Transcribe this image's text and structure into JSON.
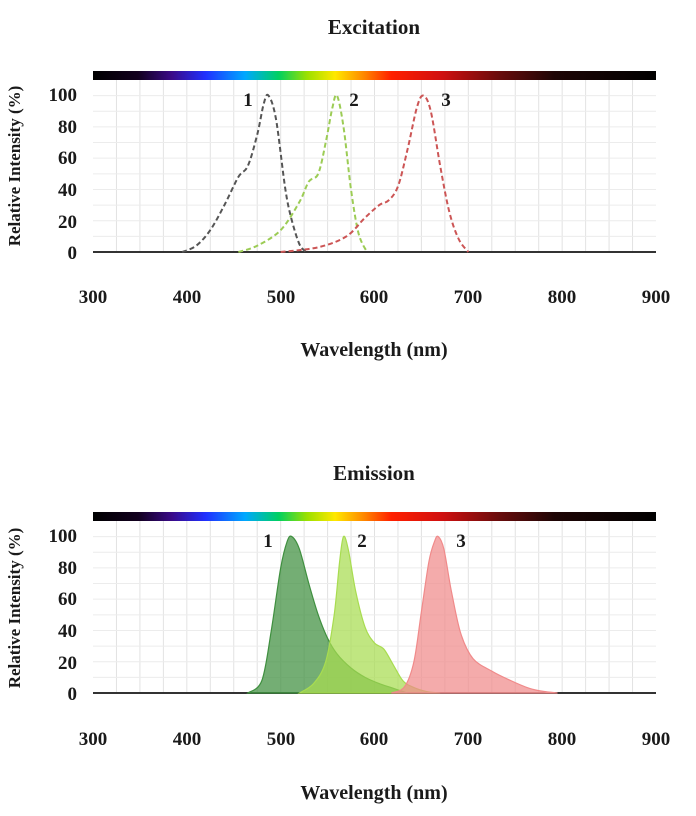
{
  "chart_data": [
    {
      "type": "line",
      "title": "Excitation",
      "xlabel": "Wavelength (nm)",
      "ylabel": "Relative Intensity (%)",
      "xlim": [
        300,
        900
      ],
      "ylim": [
        0,
        110
      ],
      "x_ticks": [
        300,
        400,
        500,
        600,
        700,
        800,
        900
      ],
      "y_ticks": [
        0,
        20,
        40,
        60,
        80,
        100
      ],
      "grid": true,
      "spectrum_bar": true,
      "line_style": "dashed",
      "series": [
        {
          "label": "1",
          "color": "#555555",
          "x": [
            395,
            410,
            425,
            440,
            455,
            465,
            475,
            482,
            487,
            495,
            505,
            512,
            520,
            527
          ],
          "y": [
            0,
            4,
            14,
            30,
            48,
            55,
            75,
            95,
            100,
            85,
            40,
            20,
            5,
            0
          ]
        },
        {
          "label": "2",
          "color": "#9ccc55",
          "x": [
            455,
            475,
            500,
            520,
            530,
            540,
            548,
            555,
            560,
            567,
            575,
            583,
            592
          ],
          "y": [
            0,
            4,
            14,
            32,
            45,
            50,
            70,
            92,
            100,
            80,
            40,
            12,
            0
          ]
        },
        {
          "label": "3",
          "color": "#cc5555",
          "x": [
            500,
            540,
            570,
            590,
            605,
            615,
            625,
            635,
            645,
            652,
            660,
            670,
            680,
            690,
            700
          ],
          "y": [
            0,
            3,
            10,
            22,
            30,
            33,
            42,
            65,
            92,
            100,
            90,
            55,
            25,
            8,
            0
          ]
        }
      ]
    },
    {
      "type": "area",
      "title": "Emission",
      "xlabel": "Wavelength (nm)",
      "ylabel": "Relative Intensity (%)",
      "xlim": [
        300,
        900
      ],
      "ylim": [
        0,
        110
      ],
      "x_ticks": [
        300,
        400,
        500,
        600,
        700,
        800,
        900
      ],
      "y_ticks": [
        0,
        20,
        40,
        60,
        80,
        100
      ],
      "grid": true,
      "spectrum_bar": true,
      "series": [
        {
          "label": "1",
          "color": "#3f8f3f",
          "x": [
            465,
            480,
            490,
            500,
            507,
            512,
            520,
            530,
            540,
            550,
            560,
            575,
            590,
            605,
            620,
            635
          ],
          "y": [
            0,
            8,
            40,
            80,
            97,
            100,
            92,
            70,
            50,
            35,
            25,
            16,
            10,
            6,
            3,
            0
          ]
        },
        {
          "label": "2",
          "color": "#a8dc50",
          "x": [
            520,
            535,
            548,
            557,
            563,
            567,
            572,
            580,
            590,
            600,
            610,
            620,
            630,
            640,
            655,
            670
          ],
          "y": [
            0,
            6,
            20,
            50,
            85,
            100,
            92,
            65,
            42,
            32,
            28,
            18,
            8,
            4,
            1,
            0
          ]
        },
        {
          "label": "3",
          "color": "#f08a8a",
          "x": [
            618,
            632,
            642,
            650,
            658,
            664,
            668,
            674,
            682,
            692,
            705,
            725,
            745,
            765,
            780,
            795
          ],
          "y": [
            0,
            4,
            20,
            52,
            84,
            97,
            100,
            92,
            65,
            38,
            22,
            14,
            8,
            3,
            1,
            0
          ]
        }
      ]
    }
  ]
}
